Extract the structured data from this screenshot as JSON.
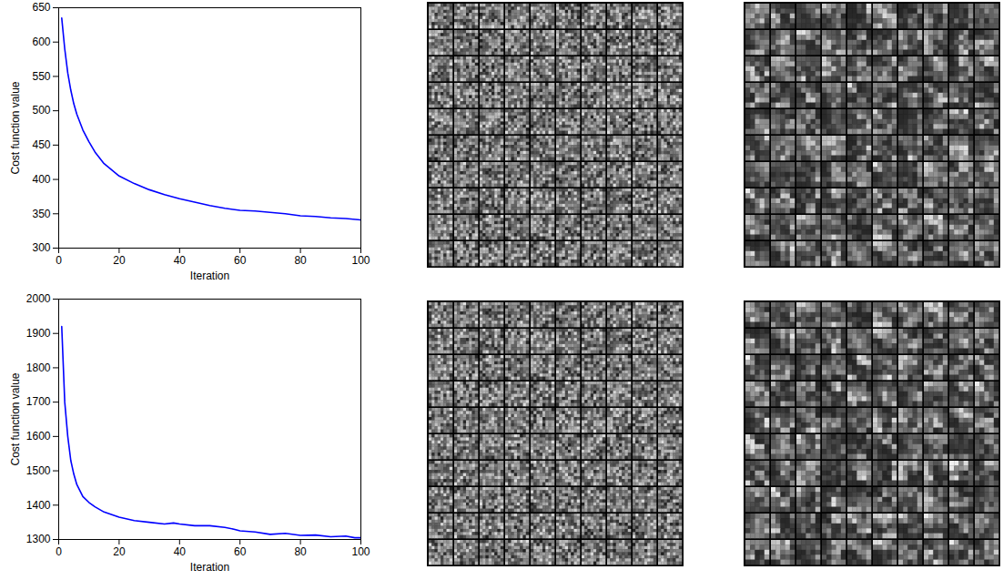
{
  "chart_data": [
    {
      "type": "line",
      "xlabel": "Iteration",
      "ylabel": "Cost function value",
      "color": "#0000ff",
      "x": [
        1,
        2,
        3,
        4,
        5,
        6,
        8,
        10,
        12,
        15,
        20,
        25,
        30,
        35,
        40,
        45,
        50,
        55,
        60,
        65,
        70,
        75,
        80,
        85,
        90,
        95,
        100
      ],
      "values": [
        635,
        590,
        555,
        530,
        510,
        495,
        472,
        455,
        440,
        423,
        405,
        394,
        385,
        378,
        372,
        367,
        362,
        358,
        355,
        354,
        352,
        350,
        347,
        346,
        344,
        343,
        341
      ],
      "xlim": [
        0,
        100
      ],
      "xticks": [
        0,
        20,
        40,
        60,
        80,
        100
      ],
      "ylim": [
        300,
        650
      ],
      "yticks": [
        300,
        350,
        400,
        450,
        500,
        550,
        600,
        650
      ]
    },
    {
      "type": "line",
      "xlabel": "Iteration",
      "ylabel": "Cost function value",
      "color": "#0000ff",
      "x": [
        1,
        2,
        3,
        4,
        5,
        6,
        8,
        10,
        12,
        15,
        20,
        25,
        30,
        35,
        38,
        40,
        45,
        50,
        55,
        58,
        60,
        65,
        70,
        75,
        80,
        85,
        90,
        95,
        98,
        100
      ],
      "values": [
        1920,
        1700,
        1600,
        1530,
        1490,
        1460,
        1425,
        1408,
        1395,
        1380,
        1365,
        1355,
        1350,
        1345,
        1348,
        1345,
        1340,
        1340,
        1335,
        1330,
        1325,
        1322,
        1315,
        1318,
        1312,
        1313,
        1308,
        1310,
        1305,
        1305
      ],
      "xlim": [
        0,
        100
      ],
      "xticks": [
        0,
        20,
        40,
        60,
        80,
        100
      ],
      "ylim": [
        1300,
        2000
      ],
      "yticks": [
        1300,
        1400,
        1500,
        1600,
        1700,
        1800,
        1900,
        2000
      ]
    }
  ]
}
